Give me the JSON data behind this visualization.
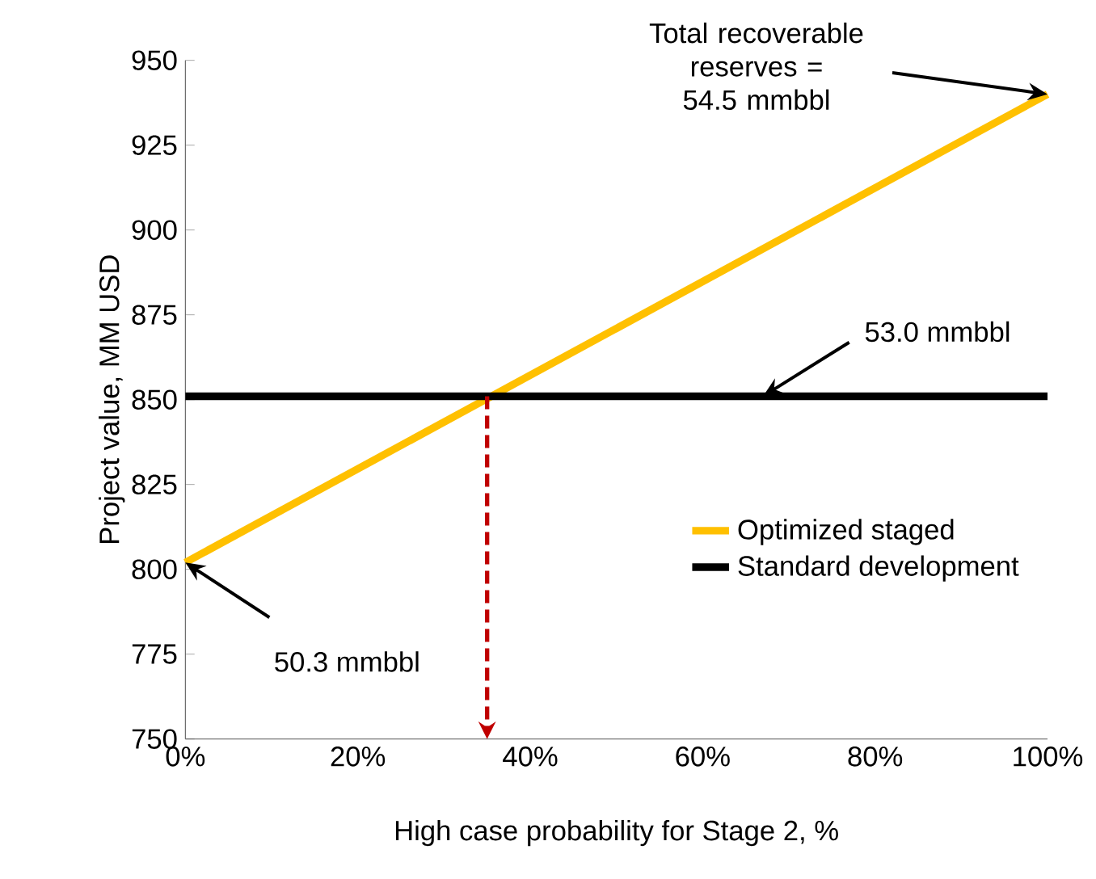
{
  "chart_data": {
    "type": "line",
    "xlabel": "High case probability for Stage 2, %",
    "ylabel": "Project value, MM USD",
    "x": [
      0,
      100
    ],
    "series": [
      {
        "name": "Optimized staged",
        "color": "#ffc000",
        "values": [
          802,
          940
        ]
      },
      {
        "name": "Standard development",
        "color": "#000000",
        "values": [
          851,
          851
        ]
      }
    ],
    "xlim": [
      0,
      100
    ],
    "xticks": [
      {
        "value": 0,
        "label": "0%"
      },
      {
        "value": 20,
        "label": "20%"
      },
      {
        "value": 40,
        "label": "40%"
      },
      {
        "value": 60,
        "label": "60%"
      },
      {
        "value": 80,
        "label": "80%"
      },
      {
        "value": 100,
        "label": "100%"
      }
    ],
    "ylim": [
      750,
      950
    ],
    "yticks": [
      750,
      775,
      800,
      825,
      850,
      875,
      900,
      925,
      950
    ],
    "grid": false,
    "legend": "right",
    "marker": "none",
    "line_style": "solid",
    "ref_lines": [
      {
        "axis": "x",
        "value": 35,
        "color": "#c00000",
        "line_style": "dashed"
      }
    ],
    "annotations": [
      {
        "text": "Total recoverable reserves = 54.5 mmbbl",
        "x": 100,
        "y": 940
      },
      {
        "text": "53.0 mmbbl",
        "x": 67,
        "y": 851
      },
      {
        "text": "50.3 mmbbl",
        "x": 0,
        "y": 802
      }
    ]
  }
}
